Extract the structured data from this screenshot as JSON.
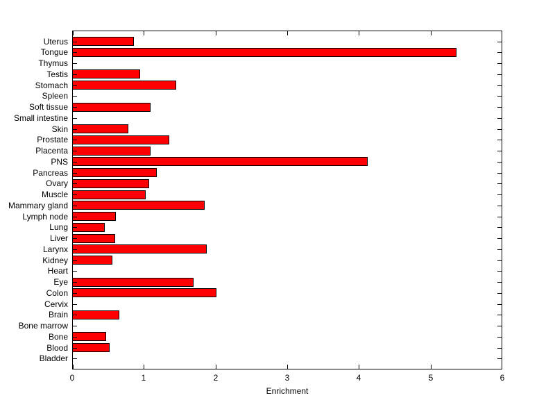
{
  "chart_data": {
    "type": "bar",
    "orientation": "horizontal",
    "title": "",
    "xlabel": "Enrichment",
    "ylabel": "",
    "xlim": [
      0,
      6
    ],
    "xticks": [
      0,
      1,
      2,
      3,
      4,
      5,
      6
    ],
    "grid": false,
    "legend": "none",
    "bar_color": "#ff0000",
    "bar_edge_color": "#000000",
    "axis_color": "#000000",
    "background_color": "#ffffff",
    "categories": [
      "Uterus",
      "Tongue",
      "Thymus",
      "Testis",
      "Stomach",
      "Spleen",
      "Soft tissue",
      "Small intestine",
      "Skin",
      "Prostate",
      "Placenta",
      "PNS",
      "Pancreas",
      "Ovary",
      "Muscle",
      "Mammary gland",
      "Lymph node",
      "Lung",
      "Liver",
      "Larynx",
      "Kidney",
      "Heart",
      "Eye",
      "Colon",
      "Cervix",
      "Brain",
      "Bone marrow",
      "Bone",
      "Blood",
      "Bladder"
    ],
    "categories_order": "top-to-bottom",
    "values": [
      0.86,
      5.36,
      0,
      0.95,
      1.45,
      0,
      1.09,
      0,
      0.78,
      1.35,
      1.09,
      4.12,
      1.18,
      1.07,
      1.03,
      1.85,
      0.61,
      0.45,
      0.6,
      1.88,
      0.56,
      0,
      1.69,
      2.01,
      0,
      0.66,
      0,
      0.47,
      0.52,
      0
    ]
  }
}
